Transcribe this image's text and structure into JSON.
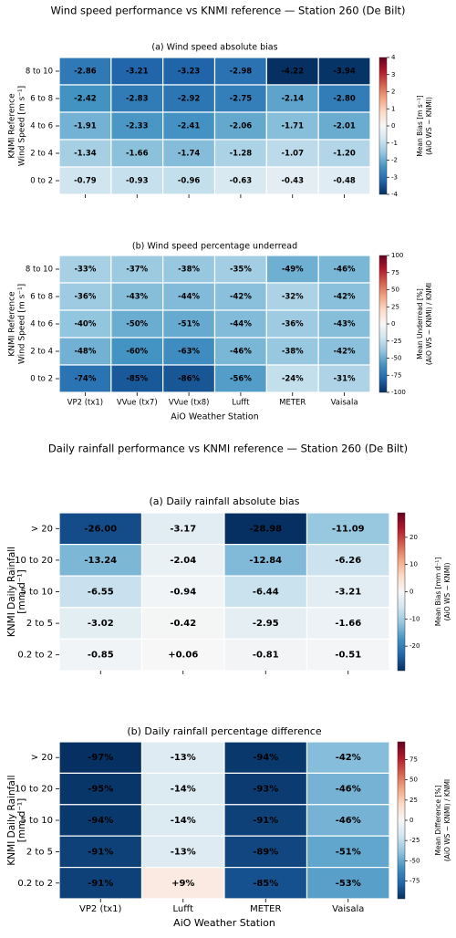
{
  "chart_data": [
    {
      "type": "heatmap",
      "suptitle": "Wind speed performance vs KNMI reference — Station 260 (De Bilt)",
      "title": "(a)  Wind speed absolute bias",
      "y_categories": [
        "8 to 10",
        "6 to 8",
        "4 to 6",
        "2 to 4",
        "0 to 2"
      ],
      "ylabel": [
        "KNMI Reference",
        "Wind Speed [m s⁻¹]"
      ],
      "values": [
        [
          -2.86,
          -3.21,
          -3.23,
          -2.98,
          -4.22,
          -3.94
        ],
        [
          -2.42,
          -2.83,
          -2.92,
          -2.75,
          -2.14,
          -2.8
        ],
        [
          -1.91,
          -2.33,
          -2.41,
          -2.06,
          -1.71,
          -2.01
        ],
        [
          -1.34,
          -1.66,
          -1.74,
          -1.28,
          -1.07,
          -1.2
        ],
        [
          -0.79,
          -0.93,
          -0.96,
          -0.63,
          -0.43,
          -0.48
        ]
      ],
      "value_labels": [
        [
          "-2.86",
          "-3.21",
          "-3.23",
          "-2.98",
          "-4.22",
          "-3.94"
        ],
        [
          "-2.42",
          "-2.83",
          "-2.92",
          "-2.75",
          "-2.14",
          "-2.80"
        ],
        [
          "-1.91",
          "-2.33",
          "-2.41",
          "-2.06",
          "-1.71",
          "-2.01"
        ],
        [
          "-1.34",
          "-1.66",
          "-1.74",
          "-1.28",
          "-1.07",
          "-1.20"
        ],
        [
          "-0.79",
          "-0.93",
          "-0.96",
          "-0.63",
          "-0.43",
          "-0.48"
        ]
      ],
      "colormap": "RdBu_r",
      "clim": [
        -4,
        4
      ],
      "cticks": [
        4,
        3,
        2,
        1,
        0,
        -1,
        -2,
        -3,
        -4
      ],
      "colorbar_label": [
        "Mean Bias [m s⁻¹]",
        "(AiO WS − KNMI)"
      ]
    },
    {
      "type": "heatmap",
      "title": "(b)  Wind speed percentage underread",
      "categories": [
        "VP2 (tx1)",
        "VVue (tx7)",
        "VVue (tx8)",
        "Lufft",
        "METER",
        "Vaisala"
      ],
      "y_categories": [
        "8 to 10",
        "6 to 8",
        "4 to 6",
        "2 to 4",
        "0 to 2"
      ],
      "ylabel": [
        "KNMI Reference",
        "Wind Speed [m s⁻¹]"
      ],
      "xlabel": "AiO Weather Station",
      "values": [
        [
          -33,
          -37,
          -38,
          -35,
          -49,
          -46
        ],
        [
          -36,
          -43,
          -44,
          -42,
          -32,
          -42
        ],
        [
          -40,
          -50,
          -51,
          -44,
          -36,
          -43
        ],
        [
          -48,
          -60,
          -63,
          -46,
          -38,
          -42
        ],
        [
          -74,
          -85,
          -86,
          -56,
          -24,
          -31
        ]
      ],
      "value_labels": [
        [
          "-33%",
          "-37%",
          "-38%",
          "-35%",
          "-49%",
          "-46%"
        ],
        [
          "-36%",
          "-43%",
          "-44%",
          "-42%",
          "-32%",
          "-42%"
        ],
        [
          "-40%",
          "-50%",
          "-51%",
          "-44%",
          "-36%",
          "-43%"
        ],
        [
          "-48%",
          "-60%",
          "-63%",
          "-46%",
          "-38%",
          "-42%"
        ],
        [
          "-74%",
          "-85%",
          "-86%",
          "-56%",
          "-24%",
          "-31%"
        ]
      ],
      "colormap": "RdBu_r",
      "clim": [
        -100,
        100
      ],
      "cticks": [
        100,
        75,
        50,
        25,
        0,
        -25,
        -50,
        -75,
        -100
      ],
      "colorbar_label": [
        "Mean Underread [%]",
        "(AiO WS − KNMI) / KNMI"
      ]
    },
    {
      "type": "heatmap",
      "suptitle": "Daily rainfall performance vs KNMI reference — Station 260 (De Bilt)",
      "title": "(a)  Daily rainfall absolute bias",
      "y_categories": [
        "> 20",
        "10 to 20",
        "5 to 10",
        "2 to 5",
        "0.2 to 2"
      ],
      "ylabel": [
        "KNMI Daily Rainfall",
        "[mm d⁻¹]"
      ],
      "values": [
        [
          -26.0,
          -3.17,
          -28.98,
          -11.09
        ],
        [
          -13.24,
          -2.04,
          -12.84,
          -6.26
        ],
        [
          -6.55,
          -0.94,
          -6.44,
          -3.21
        ],
        [
          -3.02,
          -0.42,
          -2.95,
          -1.66
        ],
        [
          -0.85,
          0.06,
          -0.81,
          -0.51
        ]
      ],
      "value_labels": [
        [
          "-26.00",
          "-3.17",
          "-28.98",
          "-11.09"
        ],
        [
          "-13.24",
          "-2.04",
          "-12.84",
          "-6.26"
        ],
        [
          "-6.55",
          "-0.94",
          "-6.44",
          "-3.21"
        ],
        [
          "-3.02",
          "-0.42",
          "-2.95",
          "-1.66"
        ],
        [
          "-0.85",
          "+0.06",
          "-0.81",
          "-0.51"
        ]
      ],
      "colormap": "RdBu_r",
      "clim": [
        -29,
        29
      ],
      "cticks": [
        20,
        10,
        0,
        -10,
        -20
      ],
      "colorbar_label": [
        "Mean Bias [mm d⁻¹]",
        "(AiO WS − KNMI)"
      ]
    },
    {
      "type": "heatmap",
      "title": "(b)  Daily rainfall percentage difference",
      "categories": [
        "VP2 (tx1)",
        "Lufft",
        "METER",
        "Vaisala"
      ],
      "y_categories": [
        "> 20",
        "10 to 20",
        "5 to 10",
        "2 to 5",
        "0.2 to 2"
      ],
      "ylabel": [
        "KNMI Daily Rainfall",
        "[mm d⁻¹]"
      ],
      "xlabel": "AiO Weather Station",
      "values": [
        [
          -97,
          -13,
          -94,
          -42
        ],
        [
          -95,
          -14,
          -93,
          -46
        ],
        [
          -94,
          -14,
          -91,
          -46
        ],
        [
          -91,
          -13,
          -89,
          -51
        ],
        [
          -91,
          9,
          -85,
          -53
        ]
      ],
      "value_labels": [
        [
          "-97%",
          "-13%",
          "-94%",
          "-42%"
        ],
        [
          "-95%",
          "-14%",
          "-93%",
          "-46%"
        ],
        [
          "-94%",
          "-14%",
          "-91%",
          "-46%"
        ],
        [
          "-91%",
          "-13%",
          "-89%",
          "-51%"
        ],
        [
          "-91%",
          "+9%",
          "-85%",
          "-53%"
        ]
      ],
      "colormap": "RdBu_r",
      "clim": [
        -97,
        97
      ],
      "cticks": [
        75,
        50,
        25,
        0,
        -25,
        -50,
        -75
      ],
      "colorbar_label": [
        "Mean Difference [%]",
        "(AiO WS − KNMI) / KNMI"
      ]
    }
  ]
}
